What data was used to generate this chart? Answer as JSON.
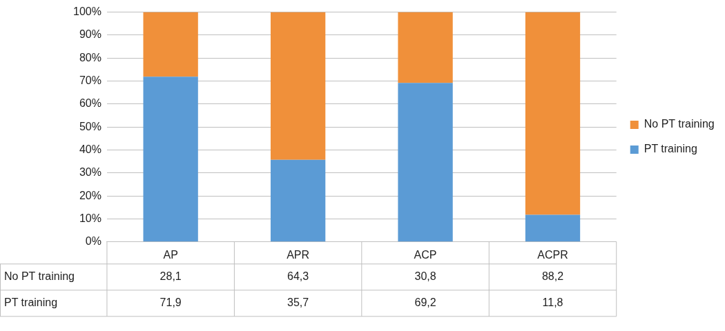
{
  "chart_data": {
    "type": "bar",
    "stacked": true,
    "categories": [
      "AP",
      "APR",
      "ACP",
      "ACPR"
    ],
    "series": [
      {
        "name": "PT training",
        "color": "#5b9bd5",
        "values": [
          71.9,
          35.7,
          69.2,
          11.8
        ],
        "value_labels": [
          "71,9",
          "35,7",
          "69,2",
          "11,8"
        ]
      },
      {
        "name": "No PT training",
        "color": "#f0903a",
        "values": [
          28.1,
          64.3,
          30.8,
          88.2
        ],
        "value_labels": [
          "28,1",
          "64,3",
          "30,8",
          "88,2"
        ]
      }
    ],
    "ylim": [
      0,
      100
    ],
    "yticks": [
      {
        "value": 0,
        "label": "0%"
      },
      {
        "value": 10,
        "label": "10%"
      },
      {
        "value": 20,
        "label": "20%"
      },
      {
        "value": 30,
        "label": "30%"
      },
      {
        "value": 40,
        "label": "40%"
      },
      {
        "value": 50,
        "label": "50%"
      },
      {
        "value": 60,
        "label": "60%"
      },
      {
        "value": 70,
        "label": "70%"
      },
      {
        "value": 80,
        "label": "80%"
      },
      {
        "value": 90,
        "label": "90%"
      },
      {
        "value": 100,
        "label": "100%"
      }
    ],
    "grid": "y",
    "legend": "right"
  }
}
